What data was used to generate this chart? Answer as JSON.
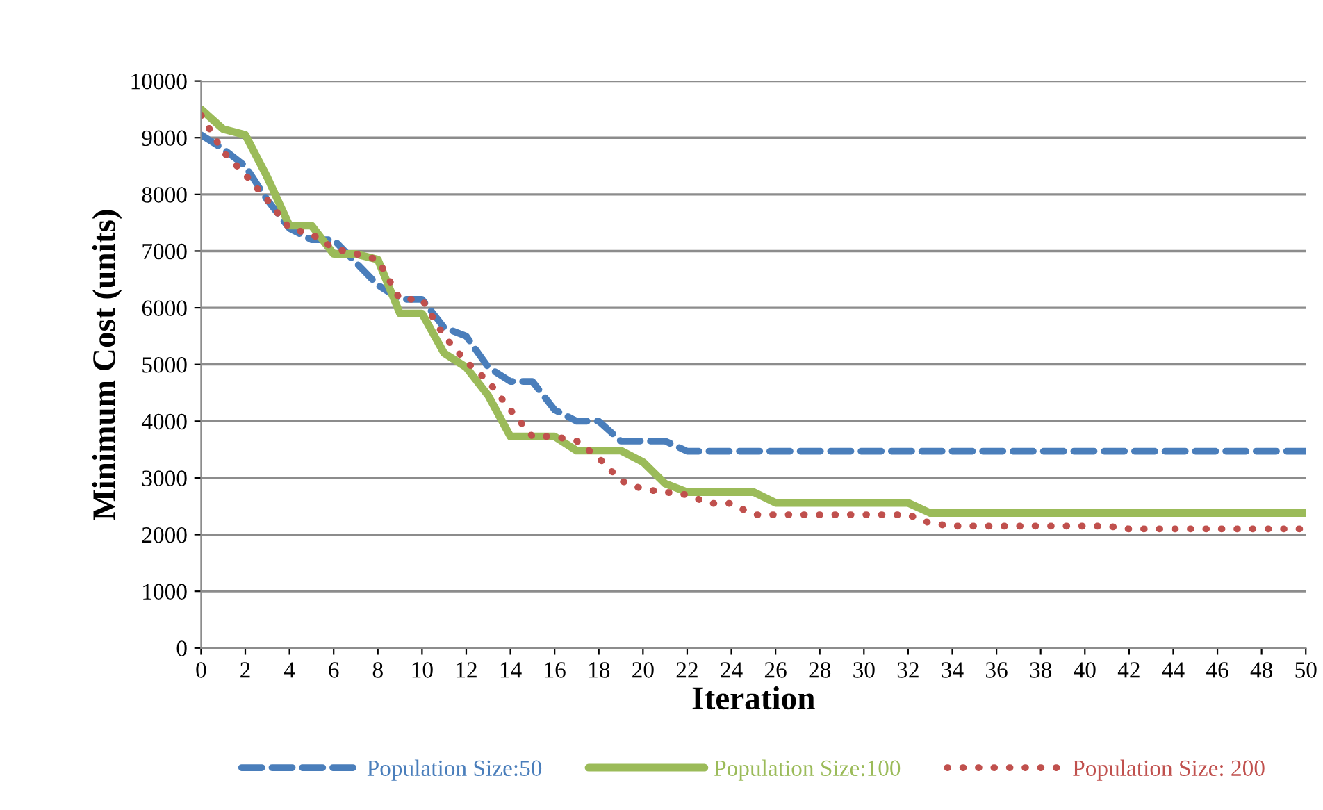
{
  "chart_data": {
    "type": "line",
    "xlabel": "Iteration",
    "ylabel": "Minimum Cost (units)",
    "x": [
      0,
      1,
      2,
      3,
      4,
      5,
      6,
      7,
      8,
      9,
      10,
      11,
      12,
      13,
      14,
      15,
      16,
      17,
      18,
      19,
      20,
      21,
      22,
      23,
      24,
      25,
      26,
      27,
      28,
      29,
      30,
      31,
      32,
      33,
      34,
      35,
      36,
      37,
      38,
      39,
      40,
      41,
      42,
      43,
      44,
      45,
      46,
      47,
      48,
      49,
      50
    ],
    "series": [
      {
        "name": "Population Size:50",
        "color": "#4a7ebb",
        "line_style": "dashed",
        "values": [
          9050,
          8800,
          8500,
          7900,
          7400,
          7200,
          7200,
          6800,
          6400,
          6150,
          6150,
          5650,
          5500,
          4950,
          4700,
          4700,
          4200,
          4000,
          4000,
          3650,
          3650,
          3650,
          3470,
          3470,
          3470,
          3470,
          3470,
          3470,
          3470,
          3470,
          3470,
          3470,
          3470,
          3470,
          3470,
          3470,
          3470,
          3470,
          3470,
          3470,
          3470,
          3470,
          3470,
          3470,
          3470,
          3470,
          3470,
          3470,
          3470,
          3470,
          3470
        ]
      },
      {
        "name": "Population Size:100",
        "color": "#9bbb59",
        "line_style": "solid",
        "values": [
          9500,
          9150,
          9050,
          8300,
          7450,
          7450,
          6950,
          6950,
          6850,
          5900,
          5900,
          5200,
          4950,
          4450,
          3730,
          3730,
          3730,
          3480,
          3480,
          3480,
          3280,
          2900,
          2750,
          2750,
          2750,
          2750,
          2560,
          2560,
          2560,
          2560,
          2560,
          2560,
          2560,
          2380,
          2380,
          2380,
          2380,
          2380,
          2380,
          2380,
          2380,
          2380,
          2380,
          2380,
          2380,
          2380,
          2380,
          2380,
          2380,
          2380,
          2380
        ]
      },
      {
        "name": "Population Size: 200",
        "color": "#c0504d",
        "line_style": "dotted",
        "values": [
          9400,
          8750,
          8350,
          7900,
          7400,
          7300,
          7050,
          6950,
          6850,
          6150,
          6150,
          5500,
          5050,
          4700,
          4200,
          3730,
          3730,
          3650,
          3350,
          2950,
          2800,
          2750,
          2700,
          2550,
          2550,
          2350,
          2350,
          2350,
          2350,
          2350,
          2350,
          2350,
          2350,
          2200,
          2150,
          2150,
          2150,
          2150,
          2150,
          2150,
          2150,
          2150,
          2100,
          2100,
          2100,
          2100,
          2100,
          2100,
          2100,
          2100,
          2100
        ]
      }
    ],
    "xlim": [
      0,
      50
    ],
    "xticks": [
      0,
      2,
      4,
      6,
      8,
      10,
      12,
      14,
      16,
      18,
      20,
      22,
      24,
      26,
      28,
      30,
      32,
      34,
      36,
      38,
      40,
      42,
      44,
      46,
      48,
      50
    ],
    "ylim": [
      0,
      10000
    ],
    "yticks": [
      0,
      1000,
      2000,
      3000,
      4000,
      5000,
      6000,
      7000,
      8000,
      9000,
      10000
    ],
    "grid": "y",
    "legend": "bottom",
    "marker": "none"
  }
}
